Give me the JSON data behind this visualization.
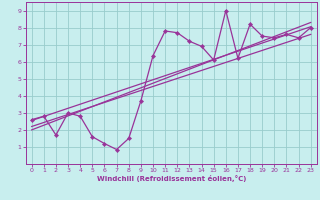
{
  "xlabel": "Windchill (Refroidissement éolien,°C)",
  "bg_color": "#c8eeee",
  "line_color": "#993399",
  "grid_color": "#99cccc",
  "xlim": [
    -0.5,
    23.5
  ],
  "ylim": [
    0,
    9.5
  ],
  "xticks": [
    0,
    1,
    2,
    3,
    4,
    5,
    6,
    7,
    8,
    9,
    10,
    11,
    12,
    13,
    14,
    15,
    16,
    17,
    18,
    19,
    20,
    21,
    22,
    23
  ],
  "yticks": [
    1,
    2,
    3,
    4,
    5,
    6,
    7,
    8,
    9
  ],
  "data_x": [
    0,
    1,
    2,
    3,
    4,
    5,
    6,
    7,
    8,
    9,
    10,
    11,
    12,
    13,
    14,
    15,
    16,
    17,
    18,
    19,
    20,
    21,
    22,
    23
  ],
  "data_y": [
    2.6,
    2.8,
    1.7,
    3.0,
    2.8,
    1.6,
    1.2,
    0.85,
    1.5,
    3.7,
    6.35,
    7.8,
    7.7,
    7.2,
    6.9,
    6.1,
    9.0,
    6.2,
    8.2,
    7.5,
    7.4,
    7.6,
    7.4,
    8.0
  ],
  "trend1_x": [
    0,
    23
  ],
  "trend1_y": [
    2.55,
    8.05
  ],
  "trend2_x": [
    0,
    23
  ],
  "trend2_y": [
    2.2,
    7.6
  ],
  "trend3_x": [
    0,
    23
  ],
  "trend3_y": [
    2.0,
    8.3
  ]
}
